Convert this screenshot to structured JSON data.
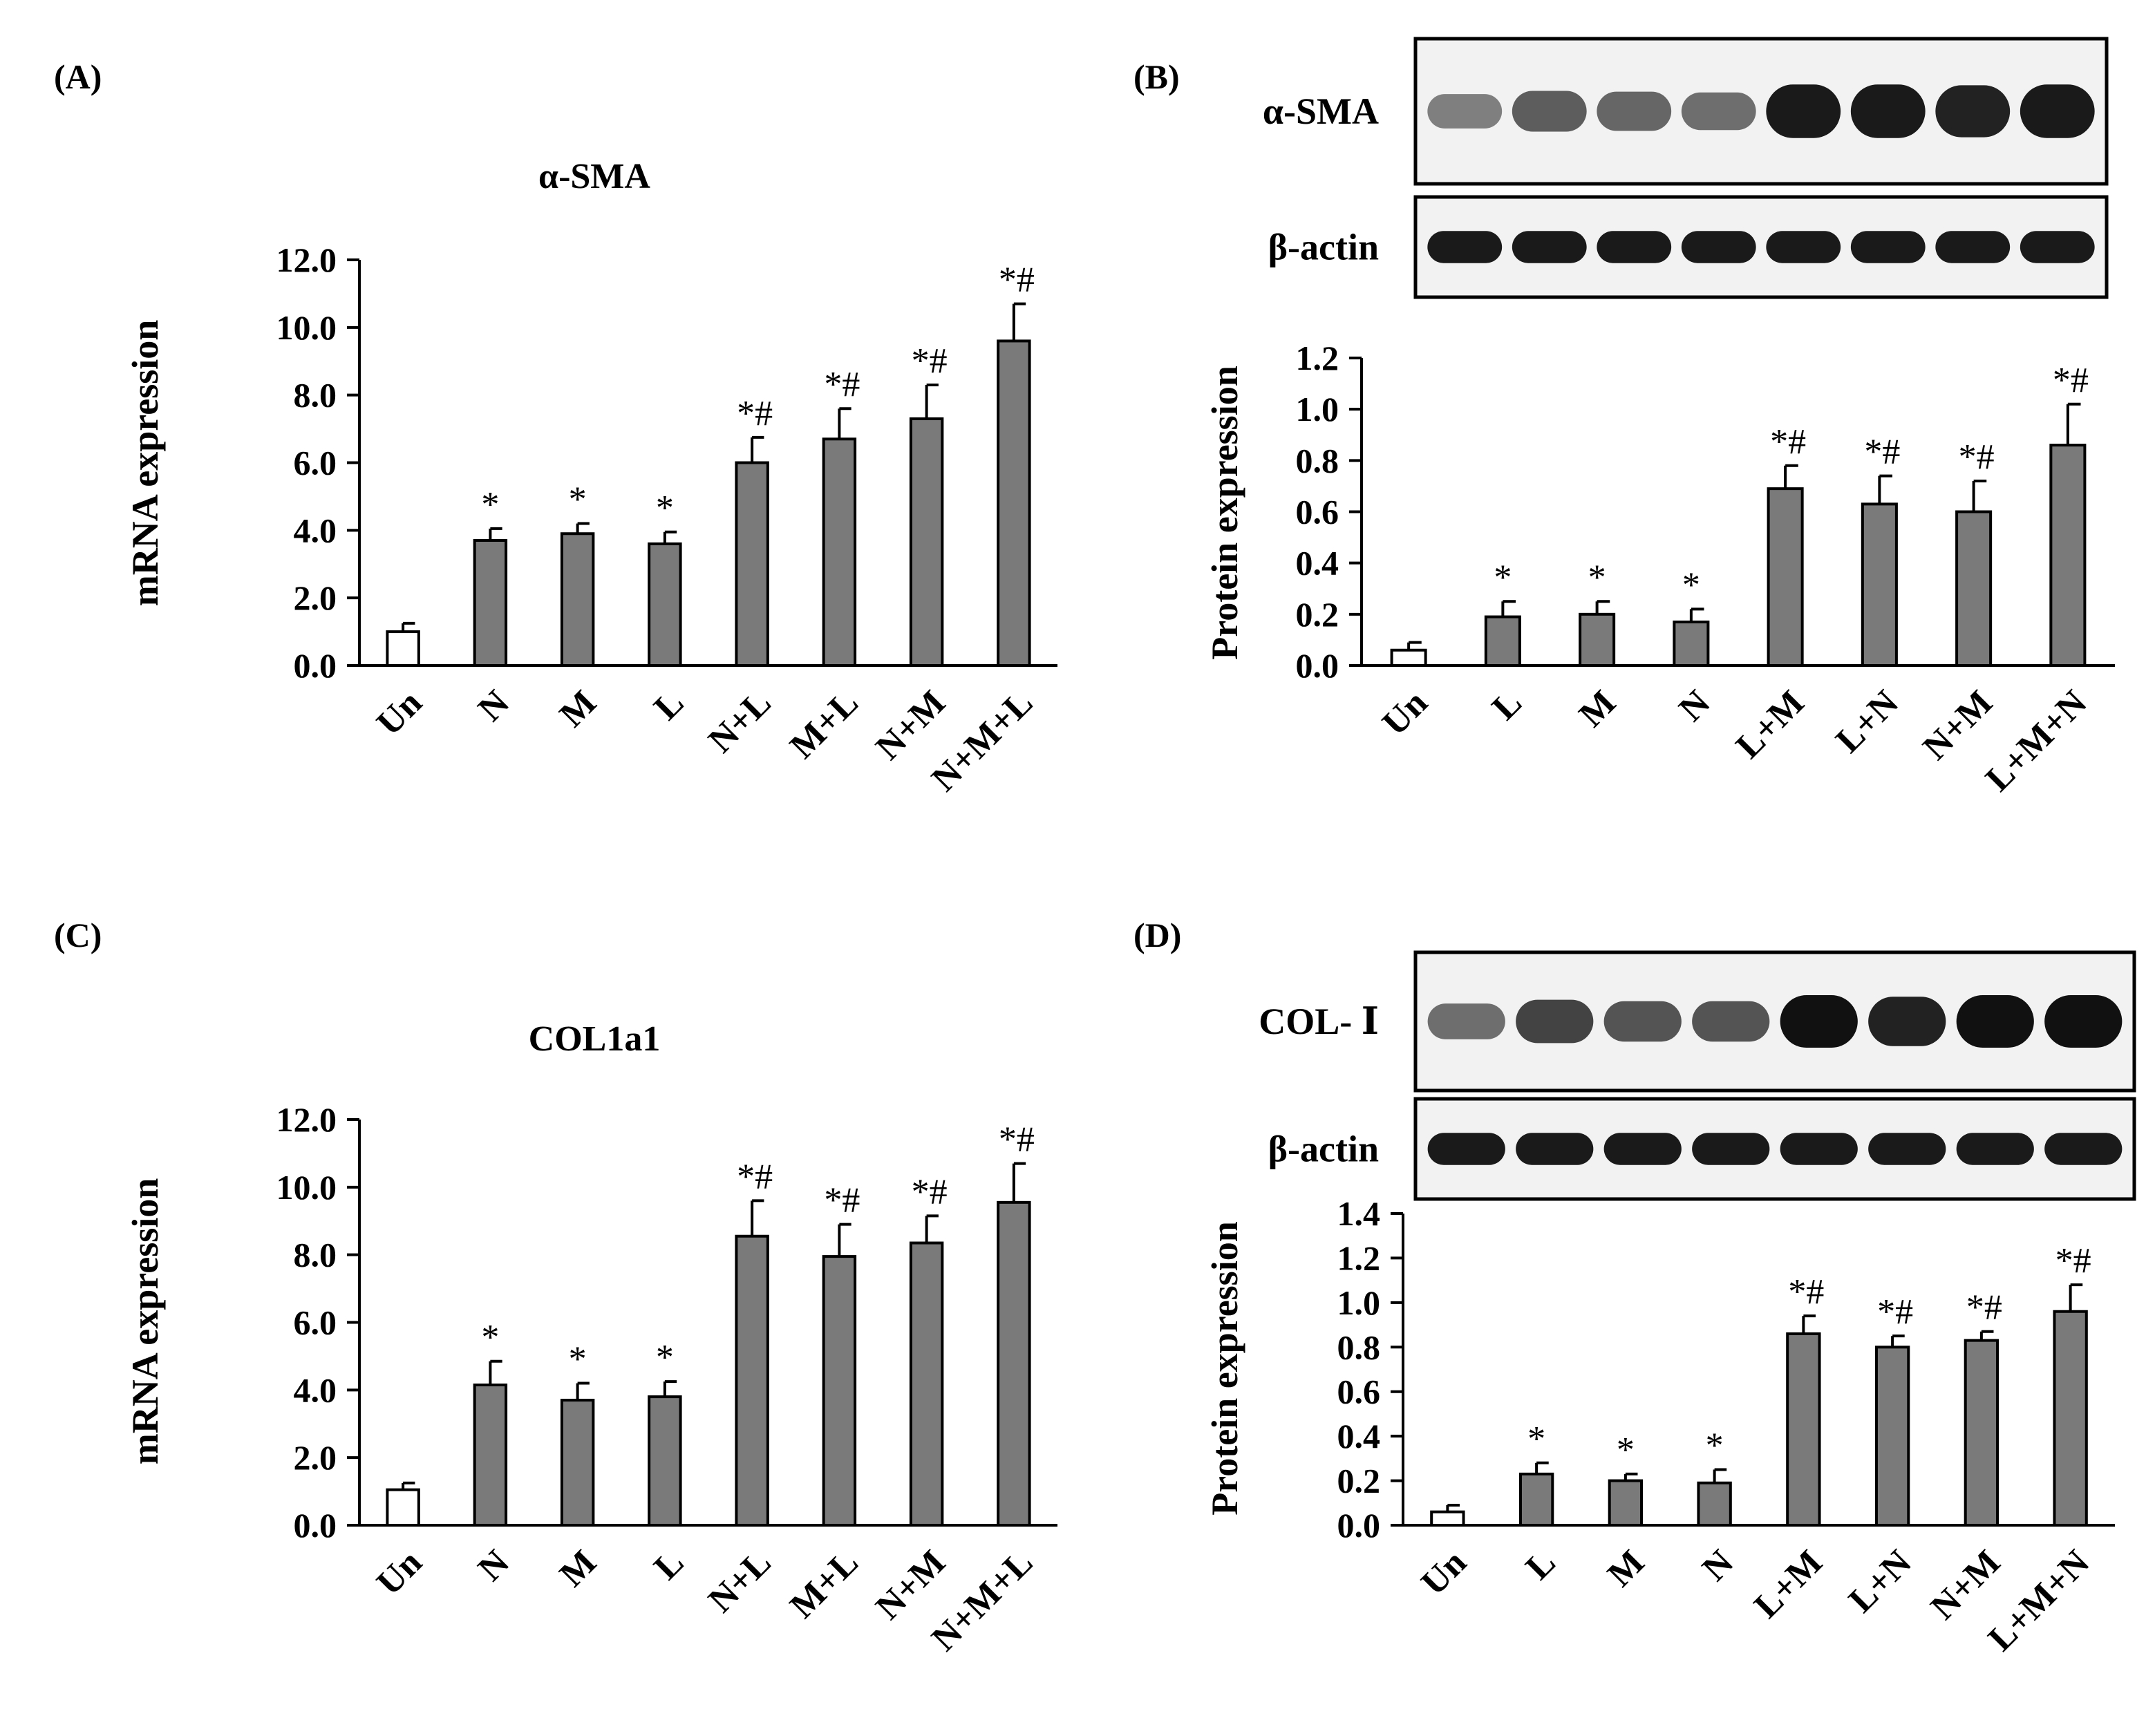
{
  "colors": {
    "bar_control": "#ffffff",
    "bar_treated": "#7a7a7a",
    "axis": "#000000",
    "blot_bg": "#f2f2f2",
    "band": "#111111"
  },
  "chart_data": [
    {
      "id": "A",
      "type": "bar",
      "panel_label": "(A)",
      "title": "α-SMA",
      "xlabel": "",
      "ylabel": "mRNA expression",
      "ylim": [
        0,
        12
      ],
      "yticks": [
        "0.0",
        "2.0",
        "4.0",
        "6.0",
        "8.0",
        "10.0",
        "12.0"
      ],
      "categories": [
        "Un",
        "N",
        "M",
        "L",
        "N+L",
        "M+L",
        "N+M",
        "N+M+L"
      ],
      "values": [
        1.0,
        3.7,
        3.9,
        3.6,
        6.0,
        6.7,
        7.3,
        9.6
      ],
      "errors": [
        0.25,
        0.35,
        0.3,
        0.35,
        0.75,
        0.9,
        1.0,
        1.1
      ],
      "significance": [
        "",
        "*",
        "*",
        "*",
        "*#",
        "*#",
        "*#",
        "*#"
      ]
    },
    {
      "id": "B",
      "type": "bar",
      "panel_label": "(B)",
      "title": "",
      "xlabel": "",
      "ylabel": "Protein expression",
      "ylim": [
        0,
        1.2
      ],
      "yticks": [
        "0.0",
        "0.2",
        "0.4",
        "0.6",
        "0.8",
        "1.0",
        "1.2"
      ],
      "categories": [
        "Un",
        "L",
        "M",
        "N",
        "L+M",
        "L+N",
        "N+M",
        "L+M+N"
      ],
      "values": [
        0.06,
        0.19,
        0.2,
        0.17,
        0.69,
        0.63,
        0.6,
        0.86
      ],
      "errors": [
        0.03,
        0.06,
        0.05,
        0.05,
        0.09,
        0.11,
        0.12,
        0.16
      ],
      "significance": [
        "",
        "*",
        "*",
        "*",
        "*#",
        "*#",
        "*#",
        "*#"
      ],
      "blots": [
        {
          "label": "α-SMA",
          "intensity": [
            0.35,
            0.55,
            0.5,
            0.45,
            0.95,
            0.95,
            0.9,
            0.95
          ]
        },
        {
          "label": "β-actin",
          "intensity": [
            0.95,
            0.95,
            0.95,
            0.95,
            0.95,
            0.95,
            0.95,
            0.95
          ]
        }
      ]
    },
    {
      "id": "C",
      "type": "bar",
      "panel_label": "(C)",
      "title": "COL1a1",
      "xlabel": "",
      "ylabel": "mRNA expression",
      "ylim": [
        0,
        12
      ],
      "yticks": [
        "0.0",
        "2.0",
        "4.0",
        "6.0",
        "8.0",
        "10.0",
        "12.0"
      ],
      "categories": [
        "Un",
        "N",
        "M",
        "L",
        "N+L",
        "M+L",
        "N+M",
        "N+M+L"
      ],
      "values": [
        1.05,
        4.15,
        3.7,
        3.8,
        8.55,
        7.95,
        8.35,
        9.55
      ],
      "errors": [
        0.2,
        0.7,
        0.5,
        0.45,
        1.05,
        0.95,
        0.8,
        1.15
      ],
      "significance": [
        "",
        "*",
        "*",
        "*",
        "*#",
        "*#",
        "*#",
        "*#"
      ]
    },
    {
      "id": "D",
      "type": "bar",
      "panel_label": "(D)",
      "title": "",
      "xlabel": "",
      "ylabel": "Protein expression",
      "ylim": [
        0,
        1.4
      ],
      "yticks": [
        "0.0",
        "0.2",
        "0.4",
        "0.6",
        "0.8",
        "1.0",
        "1.2",
        "1.4"
      ],
      "categories": [
        "Un",
        "L",
        "M",
        "N",
        "L+M",
        "L+N",
        "N+M",
        "L+M+N"
      ],
      "values": [
        0.06,
        0.23,
        0.2,
        0.19,
        0.86,
        0.8,
        0.83,
        0.96
      ],
      "errors": [
        0.03,
        0.05,
        0.03,
        0.06,
        0.08,
        0.05,
        0.04,
        0.12
      ],
      "significance": [
        "",
        "*",
        "*",
        "*",
        "*#",
        "*#",
        "*#",
        "*#"
      ],
      "blots": [
        {
          "label": "COL- Ⅰ",
          "intensity": [
            0.45,
            0.7,
            0.6,
            0.6,
            1.0,
            0.9,
            1.0,
            1.0
          ]
        },
        {
          "label": "β-actin",
          "intensity": [
            0.95,
            0.95,
            0.95,
            0.95,
            0.95,
            0.95,
            0.95,
            0.95
          ]
        }
      ]
    }
  ]
}
